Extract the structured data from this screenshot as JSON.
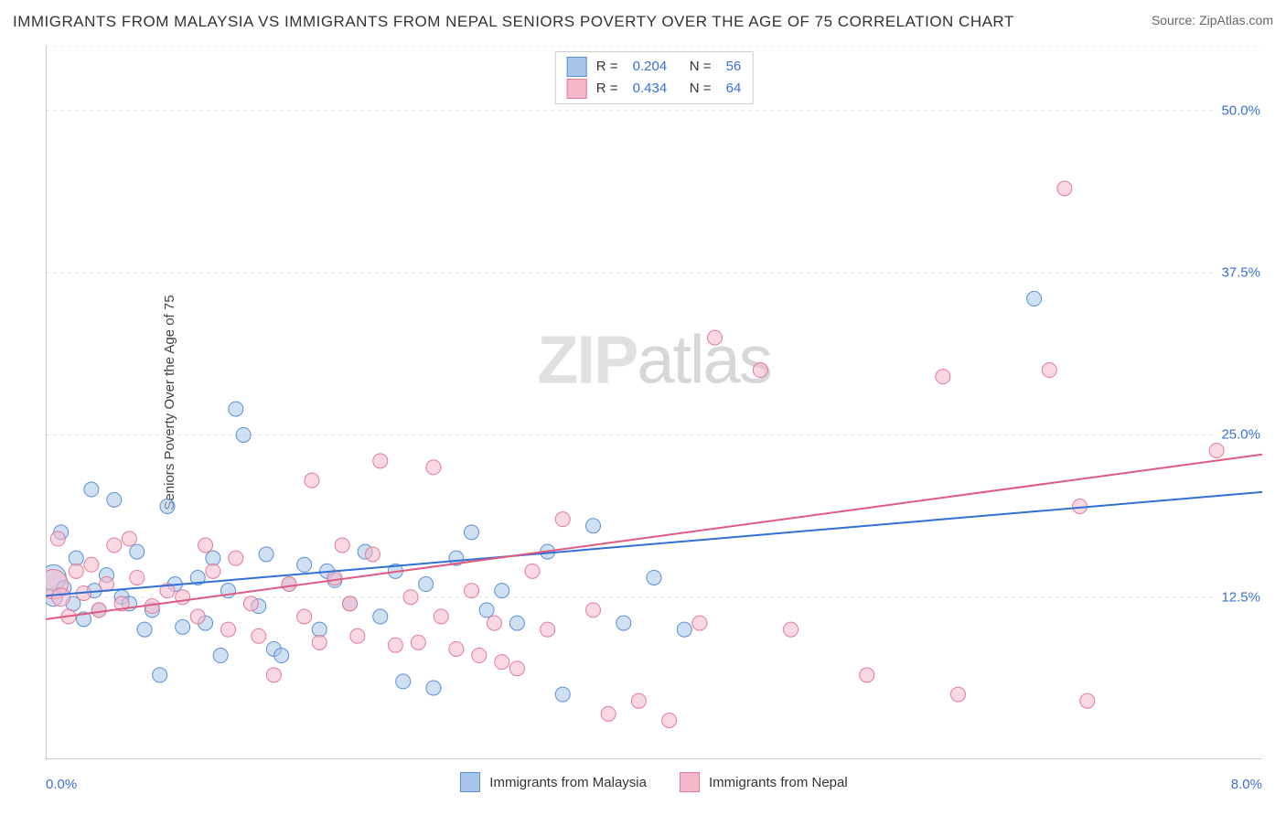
{
  "title": "IMMIGRANTS FROM MALAYSIA VS IMMIGRANTS FROM NEPAL SENIORS POVERTY OVER THE AGE OF 75 CORRELATION CHART",
  "source": "Source: ZipAtlas.com",
  "ylabel": "Seniors Poverty Over the Age of 75",
  "watermark_a": "ZIP",
  "watermark_b": "atlas",
  "chart": {
    "type": "scatter-with-regression",
    "background_color": "#ffffff",
    "grid_color": "#e0e0e0",
    "axis_color": "#999999",
    "xlim": [
      0.0,
      8.0
    ],
    "ylim": [
      0.0,
      55.0
    ],
    "xticks_minor": [
      1.0,
      2.0,
      3.0,
      4.0,
      5.0,
      6.0,
      7.0
    ],
    "yticks": [
      12.5,
      25.0,
      37.5,
      50.0
    ],
    "ytick_labels": [
      "12.5%",
      "25.0%",
      "37.5%",
      "50.0%"
    ],
    "xmin_label": "0.0%",
    "xmax_label": "8.0%",
    "series": [
      {
        "key": "malaysia",
        "name": "Immigrants from Malaysia",
        "fill": "#a8c6ea",
        "stroke": "#5b8fd6",
        "fill_opacity": 0.55,
        "line_color": "#2f6fd6",
        "line_width": 2,
        "R": "0.204",
        "N": "56",
        "reg_y_at_xmin": 12.6,
        "reg_y_at_xmax": 20.6,
        "points": [
          [
            0.05,
            12.5,
            10
          ],
          [
            0.05,
            14.0,
            14
          ],
          [
            0.1,
            17.5,
            8
          ],
          [
            0.12,
            13.2,
            8
          ],
          [
            0.18,
            12.0,
            8
          ],
          [
            0.2,
            15.5,
            8
          ],
          [
            0.25,
            10.8,
            8
          ],
          [
            0.3,
            20.8,
            8
          ],
          [
            0.32,
            13.0,
            8
          ],
          [
            0.35,
            11.5,
            8
          ],
          [
            0.4,
            14.2,
            8
          ],
          [
            0.45,
            20.0,
            8
          ],
          [
            0.5,
            12.5,
            8
          ],
          [
            0.55,
            12.0,
            8
          ],
          [
            0.6,
            16.0,
            8
          ],
          [
            0.65,
            10.0,
            8
          ],
          [
            0.7,
            11.5,
            8
          ],
          [
            0.8,
            19.5,
            8
          ],
          [
            0.85,
            13.5,
            8
          ],
          [
            0.9,
            10.2,
            8
          ],
          [
            1.0,
            14.0,
            8
          ],
          [
            1.05,
            10.5,
            8
          ],
          [
            1.1,
            15.5,
            8
          ],
          [
            1.15,
            8.0,
            8
          ],
          [
            1.2,
            13.0,
            8
          ],
          [
            1.25,
            27.0,
            8
          ],
          [
            1.3,
            25.0,
            8
          ],
          [
            1.4,
            11.8,
            8
          ],
          [
            1.5,
            8.5,
            8
          ],
          [
            1.55,
            8.0,
            8
          ],
          [
            1.6,
            13.5,
            8
          ],
          [
            1.7,
            15.0,
            8
          ],
          [
            1.8,
            10.0,
            8
          ],
          [
            1.85,
            14.5,
            8
          ],
          [
            1.9,
            13.8,
            8
          ],
          [
            2.0,
            12.0,
            8
          ],
          [
            2.1,
            16.0,
            8
          ],
          [
            2.2,
            11.0,
            8
          ],
          [
            2.3,
            14.5,
            8
          ],
          [
            2.35,
            6.0,
            8
          ],
          [
            2.5,
            13.5,
            8
          ],
          [
            2.55,
            5.5,
            8
          ],
          [
            2.7,
            15.5,
            8
          ],
          [
            2.8,
            17.5,
            8
          ],
          [
            2.9,
            11.5,
            8
          ],
          [
            3.0,
            13.0,
            8
          ],
          [
            3.1,
            10.5,
            8
          ],
          [
            3.3,
            16.0,
            8
          ],
          [
            3.4,
            5.0,
            8
          ],
          [
            3.6,
            18.0,
            8
          ],
          [
            3.8,
            10.5,
            8
          ],
          [
            4.0,
            14.0,
            8
          ],
          [
            4.2,
            10.0,
            8
          ],
          [
            6.5,
            35.5,
            8
          ],
          [
            0.75,
            6.5,
            8
          ],
          [
            1.45,
            15.8,
            8
          ]
        ]
      },
      {
        "key": "nepal",
        "name": "Immigrants from Nepal",
        "fill": "#f5b8c8",
        "stroke": "#e37a98",
        "fill_opacity": 0.55,
        "line_color": "#e05a80",
        "line_width": 2,
        "R": "0.434",
        "N": "64",
        "reg_y_at_xmin": 10.8,
        "reg_y_at_xmax": 23.5,
        "points": [
          [
            0.05,
            13.5,
            16
          ],
          [
            0.08,
            17.0,
            8
          ],
          [
            0.1,
            12.5,
            10
          ],
          [
            0.15,
            11.0,
            8
          ],
          [
            0.2,
            14.5,
            8
          ],
          [
            0.25,
            12.8,
            8
          ],
          [
            0.3,
            15.0,
            8
          ],
          [
            0.35,
            11.5,
            8
          ],
          [
            0.4,
            13.5,
            8
          ],
          [
            0.5,
            12.0,
            8
          ],
          [
            0.6,
            14.0,
            8
          ],
          [
            0.7,
            11.8,
            8
          ],
          [
            0.8,
            13.0,
            8
          ],
          [
            0.9,
            12.5,
            8
          ],
          [
            1.0,
            11.0,
            8
          ],
          [
            1.1,
            14.5,
            8
          ],
          [
            1.2,
            10.0,
            8
          ],
          [
            1.25,
            15.5,
            8
          ],
          [
            1.35,
            12.0,
            8
          ],
          [
            1.4,
            9.5,
            8
          ],
          [
            1.5,
            6.5,
            8
          ],
          [
            1.6,
            13.5,
            8
          ],
          [
            1.7,
            11.0,
            8
          ],
          [
            1.75,
            21.5,
            8
          ],
          [
            1.8,
            9.0,
            8
          ],
          [
            1.9,
            14.0,
            8
          ],
          [
            2.0,
            12.0,
            8
          ],
          [
            2.05,
            9.5,
            8
          ],
          [
            2.15,
            15.8,
            8
          ],
          [
            2.2,
            23.0,
            8
          ],
          [
            2.3,
            8.8,
            8
          ],
          [
            2.4,
            12.5,
            8
          ],
          [
            2.45,
            9.0,
            8
          ],
          [
            2.55,
            22.5,
            8
          ],
          [
            2.6,
            11.0,
            8
          ],
          [
            2.7,
            8.5,
            8
          ],
          [
            2.8,
            13.0,
            8
          ],
          [
            2.85,
            8.0,
            8
          ],
          [
            2.95,
            10.5,
            8
          ],
          [
            3.0,
            7.5,
            8
          ],
          [
            3.1,
            7.0,
            8
          ],
          [
            3.3,
            10.0,
            8
          ],
          [
            3.4,
            18.5,
            8
          ],
          [
            3.6,
            11.5,
            8
          ],
          [
            3.7,
            3.5,
            8
          ],
          [
            3.9,
            4.5,
            8
          ],
          [
            4.1,
            3.0,
            8
          ],
          [
            4.3,
            10.5,
            8
          ],
          [
            4.4,
            32.5,
            8
          ],
          [
            4.7,
            30.0,
            8
          ],
          [
            4.9,
            10.0,
            8
          ],
          [
            5.4,
            6.5,
            8
          ],
          [
            5.9,
            29.5,
            8
          ],
          [
            6.0,
            5.0,
            8
          ],
          [
            6.6,
            30.0,
            8
          ],
          [
            6.7,
            44.0,
            8
          ],
          [
            6.8,
            19.5,
            8
          ],
          [
            6.85,
            4.5,
            8
          ],
          [
            7.7,
            23.8,
            8
          ],
          [
            1.05,
            16.5,
            8
          ],
          [
            0.55,
            17.0,
            8
          ],
          [
            0.45,
            16.5,
            8
          ],
          [
            1.95,
            16.5,
            8
          ],
          [
            3.2,
            14.5,
            8
          ]
        ]
      }
    ]
  },
  "legend_stats_labels": {
    "R": "R =",
    "N": "N ="
  }
}
